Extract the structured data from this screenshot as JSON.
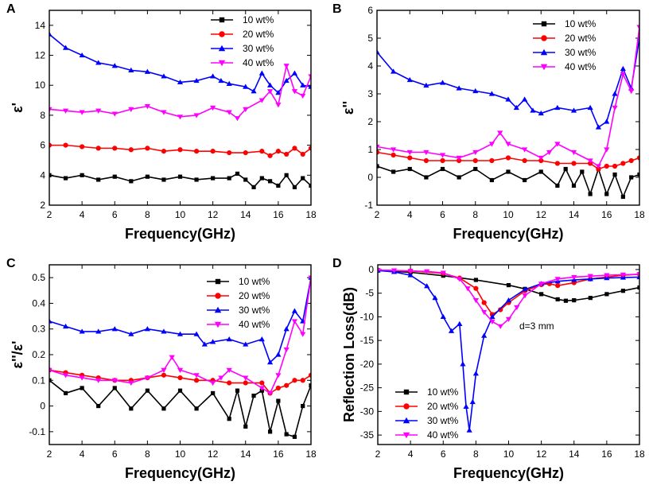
{
  "figure_colors": {
    "10 wt%": "#000000",
    "20 wt%": "#ff0000",
    "30 wt%": "#0000ff",
    "40 wt%": "#ff00ff"
  },
  "chart_data": [
    {
      "panel": "A",
      "type": "line",
      "xlabel": "Frequency(GHz)",
      "ylabel": "ε'",
      "xlim": [
        2,
        18
      ],
      "ylim": [
        2,
        15
      ],
      "xticks": [
        2,
        4,
        6,
        8,
        10,
        12,
        14,
        16,
        18
      ],
      "yticks": [
        2,
        4,
        6,
        8,
        10,
        12,
        14
      ],
      "legend": "top-right",
      "series": [
        {
          "name": "10 wt%",
          "marker": "square",
          "x": [
            2,
            3,
            4,
            5,
            6,
            7,
            8,
            9,
            10,
            11,
            12,
            13,
            13.5,
            14,
            14.5,
            15,
            15.5,
            16,
            16.5,
            17,
            17.5,
            18
          ],
          "y": [
            4.0,
            3.8,
            4.0,
            3.7,
            3.9,
            3.6,
            3.9,
            3.7,
            3.9,
            3.7,
            3.8,
            3.8,
            4.1,
            3.7,
            3.2,
            3.8,
            3.6,
            3.3,
            4.0,
            3.2,
            3.8,
            3.3
          ]
        },
        {
          "name": "20 wt%",
          "marker": "circle",
          "x": [
            2,
            3,
            4,
            5,
            6,
            7,
            8,
            9,
            10,
            11,
            12,
            13,
            14,
            15,
            15.5,
            16,
            16.5,
            17,
            17.5,
            18
          ],
          "y": [
            6.0,
            6.0,
            5.9,
            5.8,
            5.8,
            5.7,
            5.8,
            5.6,
            5.7,
            5.6,
            5.6,
            5.5,
            5.5,
            5.6,
            5.3,
            5.6,
            5.4,
            5.8,
            5.4,
            5.8
          ]
        },
        {
          "name": "30 wt%",
          "marker": "triangle-up",
          "x": [
            2,
            3,
            4,
            5,
            6,
            7,
            8,
            9,
            10,
            11,
            12,
            12.5,
            13,
            14,
            14.5,
            15,
            15.5,
            16,
            16.5,
            17,
            17.5,
            18
          ],
          "y": [
            13.4,
            12.5,
            12.0,
            11.5,
            11.3,
            11.0,
            10.9,
            10.6,
            10.2,
            10.3,
            10.6,
            10.3,
            10.1,
            9.9,
            9.6,
            10.8,
            10.0,
            9.5,
            10.3,
            10.8,
            10.0,
            9.9
          ]
        },
        {
          "name": "40 wt%",
          "marker": "triangle-down",
          "x": [
            2,
            3,
            4,
            5,
            6,
            7,
            8,
            9,
            10,
            11,
            12,
            13,
            13.5,
            14,
            15,
            15.5,
            16,
            16.5,
            17,
            17.5,
            18
          ],
          "y": [
            8.4,
            8.3,
            8.2,
            8.3,
            8.1,
            8.4,
            8.6,
            8.2,
            7.9,
            8.0,
            8.5,
            8.2,
            7.8,
            8.4,
            9.0,
            9.6,
            8.7,
            11.3,
            9.6,
            9.3,
            10.6
          ]
        }
      ]
    },
    {
      "panel": "B",
      "type": "line",
      "xlabel": "Frequency(GHz)",
      "ylabel": "ε''",
      "xlim": [
        2,
        18
      ],
      "ylim": [
        -1,
        6
      ],
      "xticks": [
        2,
        4,
        6,
        8,
        10,
        12,
        14,
        16,
        18
      ],
      "yticks": [
        -1,
        0,
        1,
        2,
        3,
        4,
        5,
        6
      ],
      "legend": "top-right",
      "series": [
        {
          "name": "10 wt%",
          "marker": "square",
          "x": [
            2,
            3,
            4,
            5,
            6,
            7,
            8,
            9,
            10,
            11,
            12,
            13,
            13.5,
            14,
            14.5,
            15,
            15.5,
            16,
            16.5,
            17,
            17.5,
            18
          ],
          "y": [
            0.4,
            0.2,
            0.3,
            0.0,
            0.3,
            0.0,
            0.3,
            -0.1,
            0.2,
            -0.1,
            0.2,
            -0.3,
            0.3,
            -0.3,
            0.2,
            -0.6,
            0.3,
            -0.6,
            0.1,
            -0.7,
            0.0,
            0.1
          ]
        },
        {
          "name": "20 wt%",
          "marker": "circle",
          "x": [
            2,
            3,
            4,
            5,
            6,
            7,
            8,
            9,
            10,
            11,
            12,
            13,
            14,
            15,
            15.5,
            16,
            16.5,
            17,
            17.5,
            18
          ],
          "y": [
            0.9,
            0.8,
            0.7,
            0.6,
            0.6,
            0.6,
            0.6,
            0.6,
            0.7,
            0.6,
            0.6,
            0.5,
            0.5,
            0.5,
            0.3,
            0.4,
            0.4,
            0.5,
            0.6,
            0.7
          ]
        },
        {
          "name": "30 wt%",
          "marker": "triangle-up",
          "x": [
            2,
            3,
            4,
            5,
            6,
            7,
            8,
            9,
            10,
            10.5,
            11,
            11.5,
            12,
            13,
            14,
            15,
            15.5,
            16,
            16.5,
            17,
            17.5,
            18
          ],
          "y": [
            4.5,
            3.8,
            3.5,
            3.3,
            3.4,
            3.2,
            3.1,
            3.0,
            2.8,
            2.5,
            2.8,
            2.4,
            2.3,
            2.5,
            2.4,
            2.5,
            1.8,
            2.0,
            3.0,
            3.9,
            3.2,
            5.0
          ]
        },
        {
          "name": "40 wt%",
          "marker": "triangle-down",
          "x": [
            2,
            3,
            4,
            5,
            6,
            7,
            8,
            9,
            9.5,
            10,
            11,
            12,
            12.5,
            13,
            14,
            15,
            15.5,
            16,
            16.5,
            17,
            17.5,
            18
          ],
          "y": [
            1.1,
            1.0,
            0.9,
            0.9,
            0.8,
            0.7,
            0.9,
            1.2,
            1.6,
            1.2,
            1.0,
            0.7,
            0.9,
            1.2,
            0.9,
            0.6,
            0.4,
            1.0,
            2.5,
            3.7,
            3.1,
            5.4
          ]
        }
      ]
    },
    {
      "panel": "C",
      "type": "line",
      "xlabel": "Frequency(GHz)",
      "ylabel": "ε''/ε'",
      "xlim": [
        2,
        18
      ],
      "ylim": [
        -0.15,
        0.55
      ],
      "xticks": [
        2,
        4,
        6,
        8,
        10,
        12,
        14,
        16,
        18
      ],
      "yticks": [
        -0.1,
        0.0,
        0.1,
        0.2,
        0.3,
        0.4,
        0.5
      ],
      "legend": "top-right",
      "series": [
        {
          "name": "10 wt%",
          "marker": "square",
          "x": [
            2,
            3,
            4,
            5,
            6,
            7,
            8,
            9,
            10,
            11,
            12,
            13,
            13.5,
            14,
            14.5,
            15,
            15.5,
            16,
            16.5,
            17,
            17.5,
            18
          ],
          "y": [
            0.1,
            0.05,
            0.07,
            0.0,
            0.07,
            -0.01,
            0.06,
            -0.01,
            0.06,
            -0.01,
            0.05,
            -0.05,
            0.06,
            -0.08,
            0.04,
            0.06,
            -0.1,
            0.02,
            -0.11,
            -0.12,
            0.0,
            0.08
          ]
        },
        {
          "name": "20 wt%",
          "marker": "circle",
          "x": [
            2,
            3,
            4,
            5,
            6,
            7,
            8,
            9,
            10,
            11,
            12,
            13,
            14,
            15,
            15.5,
            16,
            16.5,
            17,
            17.5,
            18
          ],
          "y": [
            0.14,
            0.13,
            0.12,
            0.11,
            0.1,
            0.1,
            0.11,
            0.12,
            0.11,
            0.1,
            0.1,
            0.09,
            0.09,
            0.09,
            0.05,
            0.07,
            0.08,
            0.1,
            0.1,
            0.12
          ]
        },
        {
          "name": "30 wt%",
          "marker": "triangle-up",
          "x": [
            2,
            3,
            4,
            5,
            6,
            7,
            8,
            9,
            10,
            11,
            11.5,
            12,
            13,
            14,
            15,
            15.5,
            16,
            16.5,
            17,
            17.5,
            18
          ],
          "y": [
            0.33,
            0.31,
            0.29,
            0.29,
            0.3,
            0.28,
            0.3,
            0.29,
            0.28,
            0.28,
            0.24,
            0.25,
            0.26,
            0.24,
            0.26,
            0.17,
            0.2,
            0.3,
            0.37,
            0.33,
            0.5
          ]
        },
        {
          "name": "40 wt%",
          "marker": "triangle-down",
          "x": [
            2,
            3,
            4,
            5,
            6,
            7,
            8,
            9,
            9.5,
            10,
            11,
            12,
            12.5,
            13,
            14,
            15,
            15.5,
            16,
            16.5,
            17,
            17.5,
            18
          ],
          "y": [
            0.14,
            0.12,
            0.11,
            0.1,
            0.1,
            0.09,
            0.11,
            0.14,
            0.19,
            0.14,
            0.12,
            0.09,
            0.11,
            0.14,
            0.11,
            0.07,
            0.05,
            0.12,
            0.22,
            0.33,
            0.28,
            0.5
          ]
        }
      ]
    },
    {
      "panel": "D",
      "type": "line",
      "xlabel": "Frequency(GHz)",
      "ylabel": "Reflection Loss(dB)",
      "xlim": [
        2,
        18
      ],
      "ylim": [
        -37,
        1
      ],
      "xticks": [
        2,
        4,
        6,
        8,
        10,
        12,
        14,
        16,
        18
      ],
      "yticks": [
        0,
        -5,
        -10,
        -15,
        -20,
        -25,
        -30,
        -35
      ],
      "legend": "bottom-left",
      "annotation": "d=3 mm",
      "series": [
        {
          "name": "10 wt%",
          "marker": "square",
          "x": [
            2,
            4,
            6,
            8,
            10,
            11,
            12,
            13,
            13.5,
            14,
            15,
            16,
            17,
            18
          ],
          "y": [
            -0.2,
            -0.6,
            -1.3,
            -2.2,
            -3.3,
            -4.1,
            -5.2,
            -6.3,
            -6.6,
            -6.5,
            -6.0,
            -5.2,
            -4.5,
            -3.8
          ]
        },
        {
          "name": "20 wt%",
          "marker": "circle",
          "x": [
            2,
            4,
            6,
            7,
            8,
            8.5,
            9,
            9.5,
            10,
            11,
            12,
            12.5,
            13,
            14,
            15,
            16,
            17,
            18
          ],
          "y": [
            -0.1,
            -0.3,
            -0.8,
            -1.8,
            -4.0,
            -7.0,
            -9.5,
            -8.5,
            -7.0,
            -4.5,
            -3.2,
            -3.0,
            -3.4,
            -2.8,
            -2.0,
            -1.6,
            -1.2,
            -1.0
          ]
        },
        {
          "name": "30 wt%",
          "marker": "triangle-up",
          "x": [
            2,
            3,
            4,
            5,
            5.5,
            6,
            6.5,
            7,
            7.2,
            7.4,
            7.6,
            7.8,
            8,
            8.5,
            9,
            10,
            11,
            12,
            13,
            14,
            15,
            16,
            17,
            18
          ],
          "y": [
            -0.2,
            -0.5,
            -1.2,
            -3.5,
            -6.0,
            -10.0,
            -13.0,
            -11.5,
            -20.0,
            -29.0,
            -34.0,
            -28.0,
            -22.0,
            -14.0,
            -10.0,
            -6.5,
            -4.2,
            -3.0,
            -2.5,
            -2.2,
            -2.0,
            -1.8,
            -1.7,
            -1.6
          ]
        },
        {
          "name": "40 wt%",
          "marker": "triangle-down",
          "x": [
            2,
            3,
            4,
            5,
            6,
            7,
            7.5,
            8,
            8.5,
            9,
            9.5,
            10,
            10.5,
            11,
            12,
            13,
            14,
            15,
            16,
            17,
            18
          ],
          "y": [
            -0.1,
            -0.2,
            -0.3,
            -0.4,
            -0.7,
            -2.0,
            -4.0,
            -6.5,
            -9.0,
            -11.0,
            -12.0,
            -10.5,
            -8.0,
            -5.5,
            -3.0,
            -2.0,
            -1.6,
            -1.4,
            -1.2,
            -1.1,
            -1.0
          ]
        }
      ]
    }
  ]
}
